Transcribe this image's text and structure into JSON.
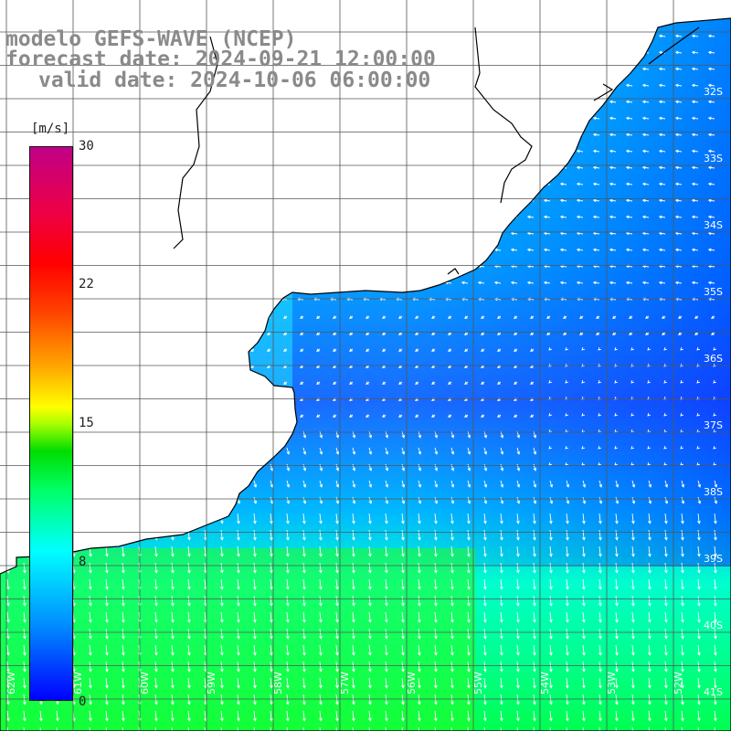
{
  "title": {
    "line1": "modelo GEFS-WAVE (NCEP)",
    "line2": "forecast date: 2024-09-21 12:00:00",
    "line3": "valid date: 2024-10-06 06:00:00"
  },
  "colorbar": {
    "unit": "[m/s]",
    "ticks": [
      "30",
      "22",
      "15",
      "8",
      "0"
    ],
    "tick_values": [
      30,
      22,
      15,
      8,
      0
    ],
    "range": [
      0,
      30
    ],
    "colors": [
      "#0000ff",
      "#0088ff",
      "#00ffff",
      "#00ff66",
      "#00dd00",
      "#ffff00",
      "#ff8800",
      "#ff0000",
      "#c00088"
    ]
  },
  "map": {
    "latitude_labels": [
      "32S",
      "33S",
      "34S",
      "35S",
      "36S",
      "37S",
      "38S",
      "39S",
      "40S",
      "41S"
    ],
    "longitude_labels": [
      "62W",
      "61W",
      "60W",
      "59W",
      "58W",
      "57W",
      "56W",
      "55W",
      "54W",
      "53W",
      "52W"
    ],
    "field": "wind speed with direction arrows",
    "land_color": "#ffffff",
    "coastline_color": "#000000",
    "grid_color": "#555555"
  }
}
